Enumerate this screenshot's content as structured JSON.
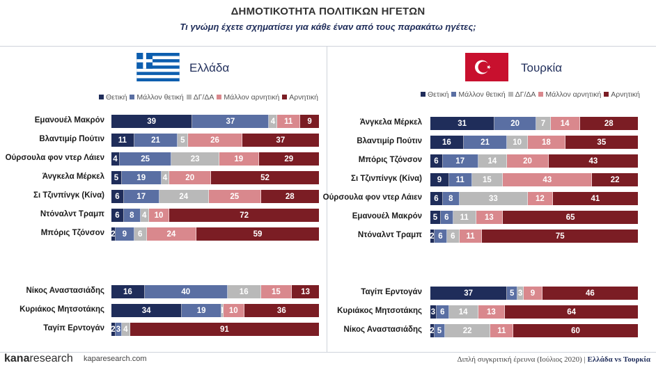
{
  "header": {
    "title": "ΔΗΜΟΤΙΚΟΤΗΤΑ ΠΟΛΙΤΙΚΩΝ ΗΓΕΤΩΝ",
    "subtitle": "Τι γνώμη έχετε σχηματίσει για κάθε έναν από τους παρακάτω ηγέτες;"
  },
  "colors": {
    "positive": "#1f2d5a",
    "rather_positive": "#5a6fa3",
    "dk_na": "#b9b9b9",
    "rather_negative": "#d9888d",
    "negative": "#7b1d24"
  },
  "chart_data": [
    {
      "type": "bar",
      "stacked": true,
      "orientation": "horizontal",
      "country": "Ελλάδα",
      "flag": "greece-flag",
      "legend": [
        "Θετική",
        "Μάλλον θετική",
        "ΔΓ/ΔΑ",
        "Μάλλον αρνητική",
        "Αρνητική"
      ],
      "legend_placement": "top",
      "rows": [
        {
          "name": "Εμανουέλ Μακρόν",
          "values": [
            39,
            37,
            4,
            11,
            9
          ]
        },
        {
          "name": "Βλαντιμίρ Πούτιν",
          "values": [
            11,
            21,
            5,
            26,
            37
          ]
        },
        {
          "name": "Ούρσουλα φον ντερ Λάιεν",
          "values": [
            4,
            25,
            23,
            19,
            29
          ]
        },
        {
          "name": "Άνγκελα Μέρκελ",
          "values": [
            5,
            19,
            4,
            20,
            52
          ]
        },
        {
          "name": "Σι Τζινπίνγκ (Κίνα)",
          "values": [
            6,
            17,
            24,
            25,
            28
          ]
        },
        {
          "name": "Ντόναλντ Τραμπ",
          "values": [
            6,
            8,
            4,
            10,
            72
          ]
        },
        {
          "name": "Μπόρις Τζόνσον",
          "values": [
            2,
            9,
            6,
            24,
            59
          ]
        },
        {
          "name": "Νίκος Αναστασιάδης",
          "values": [
            16,
            40,
            16,
            15,
            13
          ]
        },
        {
          "name": "Κυριάκος Μητσοτάκης",
          "values": [
            34,
            19,
            1,
            10,
            36
          ]
        },
        {
          "name": "Ταγίπ Ερντογάν",
          "values": [
            2,
            3,
            4,
            0,
            91
          ]
        }
      ]
    },
    {
      "type": "bar",
      "stacked": true,
      "orientation": "horizontal",
      "country": "Τουρκία",
      "flag": "turkey-flag",
      "legend": [
        "Θετική",
        "Μάλλον θετική",
        "ΔΓ/ΔΑ",
        "Μάλλον αρνητική",
        "Αρνητική"
      ],
      "legend_placement": "top",
      "rows": [
        {
          "name": "Άνγκελα Μέρκελ",
          "values": [
            31,
            20,
            7,
            14,
            28
          ]
        },
        {
          "name": "Βλαντιμίρ Πούτιν",
          "values": [
            16,
            21,
            10,
            18,
            35
          ]
        },
        {
          "name": "Μπόρις Τζόνσον",
          "values": [
            6,
            17,
            14,
            20,
            43
          ]
        },
        {
          "name": "Σι Τζινπίνγκ (Κίνα)",
          "values": [
            9,
            11,
            15,
            43,
            22
          ]
        },
        {
          "name": "Ούρσουλα φον ντερ Λάιεν",
          "values": [
            6,
            8,
            33,
            12,
            41
          ]
        },
        {
          "name": "Εμανουέλ Μακρόν",
          "values": [
            5,
            6,
            11,
            13,
            65
          ]
        },
        {
          "name": "Ντόναλντ Τραμπ",
          "values": [
            2,
            6,
            6,
            11,
            75
          ]
        },
        {
          "name": "Ταγίπ Ερντογάν",
          "values": [
            37,
            5,
            3,
            9,
            46
          ]
        },
        {
          "name": "Κυριάκος Μητσοτάκης",
          "values": [
            3,
            6,
            14,
            13,
            64
          ]
        },
        {
          "name": "Νίκος Αναστασιάδης",
          "values": [
            2,
            5,
            22,
            11,
            60
          ]
        }
      ]
    }
  ],
  "footer": {
    "logo_text_bold": "kana",
    "logo_text": "research",
    "website": "kaparesearch.com",
    "note": "Διπλή συγκριτική έρευνα (Ιούλιος 2020) |",
    "note_bold": "Ελλάδα vs Τουρκία"
  }
}
